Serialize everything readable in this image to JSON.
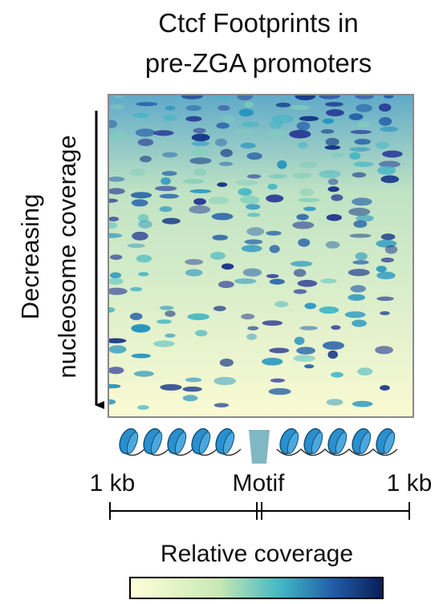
{
  "title": [
    "Ctcf Footprints in",
    "pre-ZGA promoters"
  ],
  "y_label": [
    "Decreasing",
    "nucleosome coverage"
  ],
  "x_labels": [
    "1 kb",
    "Motif",
    "1 kb"
  ],
  "colorbar_label": "Relative coverage"
}
